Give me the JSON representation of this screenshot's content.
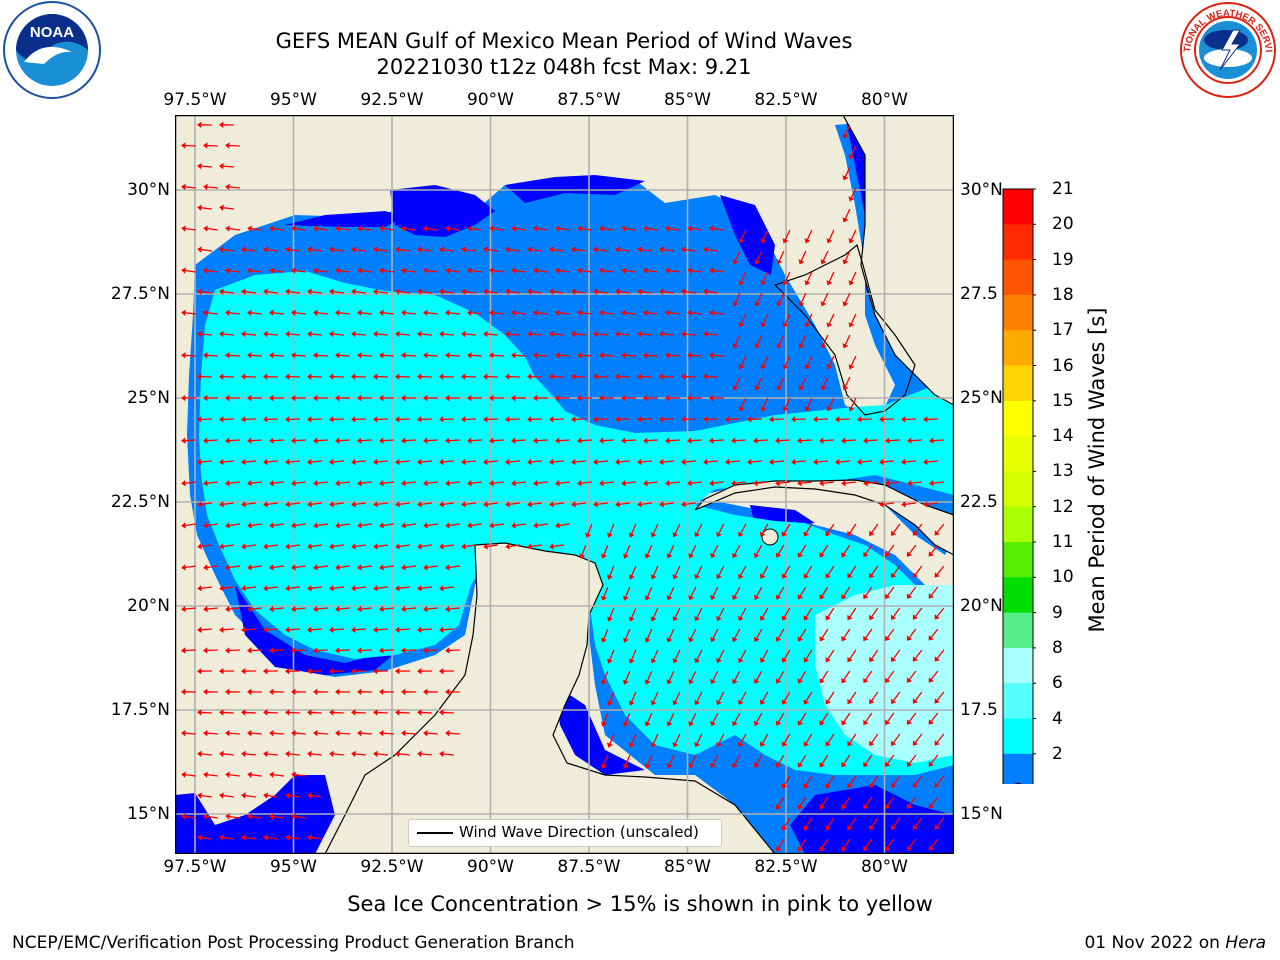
{
  "title": {
    "line1": "GEFS MEAN Gulf of Mexico Mean Period of Wind Waves",
    "line2": "20221030 t12z 048h fcst   Max: 9.21"
  },
  "logos": {
    "left": "noara-logo",
    "right": "national-weather-service-logo",
    "left_text": "NOAA",
    "right_text": "NATIONAL WEATHER SERVICE"
  },
  "map": {
    "lon_ticks": [
      "97.5°W",
      "95°W",
      "92.5°W",
      "90°W",
      "87.5°W",
      "85°W",
      "82.5°W",
      "80°W"
    ],
    "lat_ticks_left": [
      "30°N",
      "27.5°N",
      "25°N",
      "22.5°N",
      "20°N",
      "17.5°N",
      "15°N"
    ],
    "lat_ticks_right": [
      "30°N",
      "27.5",
      "25°N",
      "22.5",
      "20°N",
      "17.5",
      "15°N"
    ],
    "lon_range": [
      -98,
      -78.3
    ],
    "lat_range": [
      14,
      31.6
    ],
    "land_color": "#efedda",
    "legend_label": "Wind Wave Direction (unscaled)",
    "arrow_color": "#ff0000"
  },
  "colorbar": {
    "label": "Mean Period of Wind Waves [s]",
    "ticks": [
      "21",
      "20",
      "19",
      "18",
      "17",
      "16",
      "15",
      "14",
      "13",
      "12",
      "11",
      "10",
      "9",
      "8",
      "6",
      "4",
      "2"
    ],
    "colors": [
      "#ff0000",
      "#ff2a00",
      "#ff5500",
      "#ff8000",
      "#ffaa00",
      "#ffd400",
      "#ffff00",
      "#e8ff00",
      "#d4ff00",
      "#aaff00",
      "#55ee00",
      "#00dd00",
      "#55ee88",
      "#aaffff",
      "#55ffff",
      "#00ffff",
      "#0080ff"
    ],
    "extend_color": "#0000ff"
  },
  "footer": {
    "note": "Sea Ice Concentration > 15% is shown in pink to yellow",
    "left": "NCEP/EMC/Verification Post Processing Product Generation Branch",
    "right_date": "01 Nov 2022 on",
    "right_host": "Hera"
  }
}
